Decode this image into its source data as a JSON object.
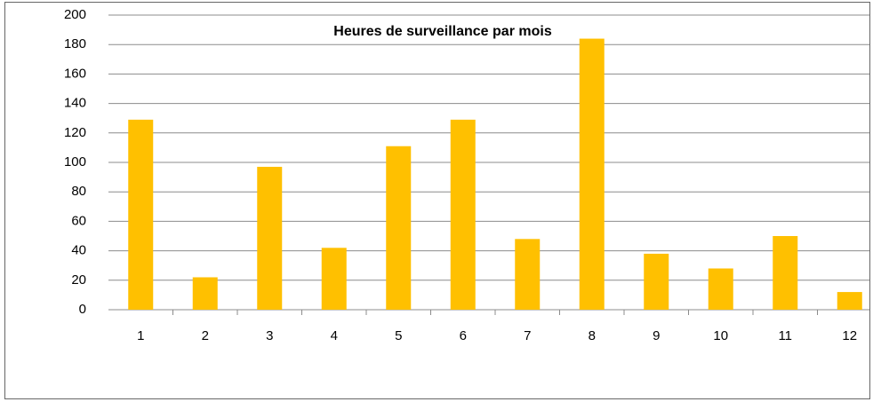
{
  "chart_data": {
    "type": "bar",
    "title": "Heures de surveillance par mois",
    "categories": [
      "1",
      "2",
      "3",
      "4",
      "5",
      "6",
      "7",
      "8",
      "9",
      "10",
      "11",
      "12"
    ],
    "values": [
      129,
      22,
      97,
      42,
      111,
      129,
      48,
      184,
      38,
      28,
      50,
      12
    ],
    "color": "#ffc000",
    "ylim": [
      0,
      200
    ],
    "yticks": [
      0,
      20,
      40,
      60,
      80,
      100,
      120,
      140,
      160,
      180,
      200
    ],
    "grid": true
  }
}
